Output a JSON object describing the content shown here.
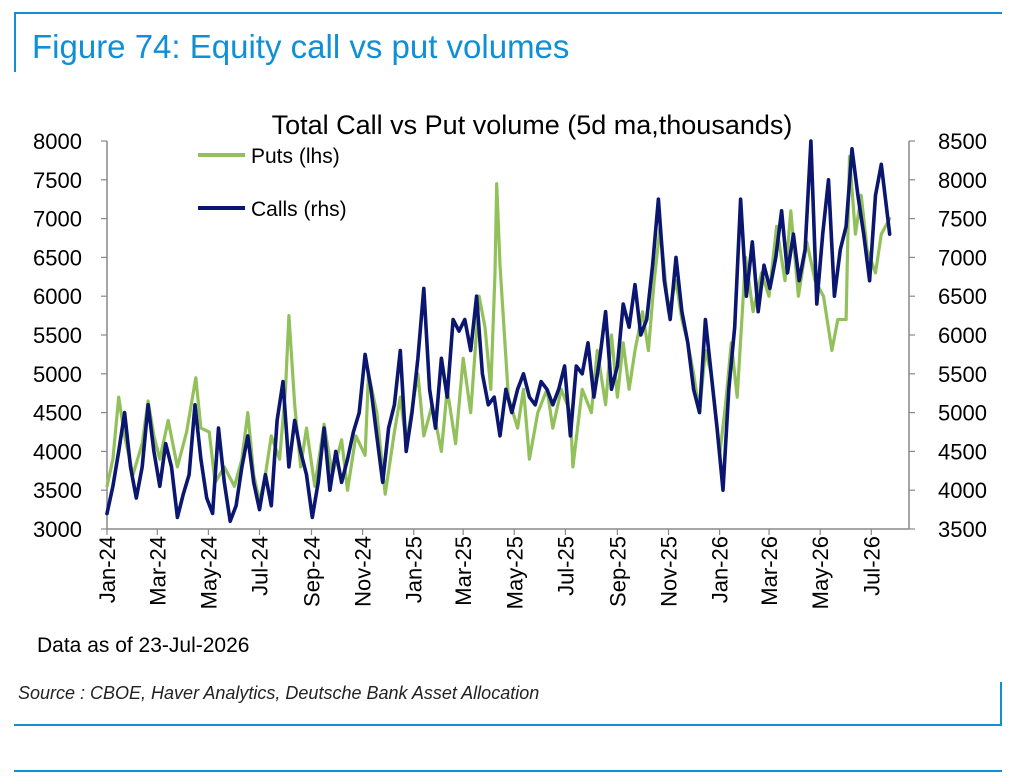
{
  "figure_title": "Figure 74: Equity call vs put volumes",
  "data_note": "Data as of 23-Jul-2026",
  "source": "Source : CBOE, Haver Analytics, Deutsche Bank Asset Allocation",
  "colors": {
    "brand": "#0e8fd6",
    "puts": "#92c05a",
    "calls": "#0a1670"
  },
  "chart_data": {
    "type": "line",
    "title": "Total Call vs Put volume (5d ma,thousands)",
    "legend": "top-left",
    "grid": false,
    "x_ticks": [
      "Jan-24",
      "Mar-24",
      "May-24",
      "Jul-24",
      "Sep-24",
      "Nov-24",
      "Jan-25",
      "Mar-25",
      "May-25",
      "Jul-25",
      "Sep-25",
      "Nov-25",
      "Jan-26",
      "Mar-26",
      "May-26",
      "Jul-26"
    ],
    "xlim": [
      "2024-01-01",
      "2026-08-15"
    ],
    "y_left": {
      "label": "",
      "ticks": [
        "3000",
        "3500",
        "4000",
        "4500",
        "5000",
        "5500",
        "6000",
        "6500",
        "7000",
        "7500",
        "8000"
      ],
      "ylim": [
        3000,
        8000
      ]
    },
    "y_right": {
      "label": "",
      "ticks": [
        "3500",
        "4000",
        "4500",
        "5000",
        "5500",
        "6000",
        "6500",
        "7000",
        "7500",
        "8000",
        "8500"
      ],
      "ylim": [
        3500,
        8500
      ]
    },
    "series": [
      {
        "name": "Puts (lhs)",
        "axis": "left",
        "color": "#92c05a",
        "points": [
          [
            "2024-01-01",
            3550
          ],
          [
            "2024-01-08",
            3900
          ],
          [
            "2024-01-15",
            4700
          ],
          [
            "2024-01-22",
            4200
          ],
          [
            "2024-02-01",
            3700
          ],
          [
            "2024-02-12",
            4100
          ],
          [
            "2024-02-19",
            4650
          ],
          [
            "2024-02-26",
            4200
          ],
          [
            "2024-03-04",
            3900
          ],
          [
            "2024-03-14",
            4400
          ],
          [
            "2024-03-25",
            3800
          ],
          [
            "2024-04-05",
            4250
          ],
          [
            "2024-04-16",
            4950
          ],
          [
            "2024-04-22",
            4300
          ],
          [
            "2024-05-02",
            4250
          ],
          [
            "2024-05-09",
            3600
          ],
          [
            "2024-05-20",
            3800
          ],
          [
            "2024-06-01",
            3550
          ],
          [
            "2024-06-10",
            3900
          ],
          [
            "2024-06-17",
            4500
          ],
          [
            "2024-06-24",
            3700
          ],
          [
            "2024-07-01",
            3350
          ],
          [
            "2024-07-08",
            3700
          ],
          [
            "2024-07-15",
            4200
          ],
          [
            "2024-07-25",
            3900
          ],
          [
            "2024-08-01",
            4800
          ],
          [
            "2024-08-05",
            5750
          ],
          [
            "2024-08-12",
            4600
          ],
          [
            "2024-08-19",
            3800
          ],
          [
            "2024-08-26",
            4300
          ],
          [
            "2024-09-05",
            3550
          ],
          [
            "2024-09-16",
            4350
          ],
          [
            "2024-09-26",
            3700
          ],
          [
            "2024-10-07",
            4150
          ],
          [
            "2024-10-14",
            3500
          ],
          [
            "2024-10-24",
            4200
          ],
          [
            "2024-11-04",
            3950
          ],
          [
            "2024-11-08",
            5000
          ],
          [
            "2024-11-18",
            4500
          ],
          [
            "2024-11-28",
            3450
          ],
          [
            "2024-12-09",
            4250
          ],
          [
            "2024-12-16",
            4700
          ],
          [
            "2024-12-23",
            4100
          ],
          [
            "2025-01-06",
            5000
          ],
          [
            "2025-01-13",
            4200
          ],
          [
            "2025-01-23",
            4600
          ],
          [
            "2025-02-03",
            4000
          ],
          [
            "2025-02-10",
            4800
          ],
          [
            "2025-02-20",
            4100
          ],
          [
            "2025-03-01",
            5200
          ],
          [
            "2025-03-10",
            4500
          ],
          [
            "2025-03-20",
            6000
          ],
          [
            "2025-03-27",
            5600
          ],
          [
            "2025-04-03",
            4800
          ],
          [
            "2025-04-08",
            6300
          ],
          [
            "2025-04-10",
            7450
          ],
          [
            "2025-04-14",
            6400
          ],
          [
            "2025-04-24",
            4700
          ],
          [
            "2025-05-05",
            4300
          ],
          [
            "2025-05-12",
            4800
          ],
          [
            "2025-05-19",
            3900
          ],
          [
            "2025-05-29",
            4500
          ],
          [
            "2025-06-09",
            4800
          ],
          [
            "2025-06-16",
            4300
          ],
          [
            "2025-06-26",
            4800
          ],
          [
            "2025-07-07",
            4500
          ],
          [
            "2025-07-10",
            3800
          ],
          [
            "2025-07-21",
            4800
          ],
          [
            "2025-08-01",
            4500
          ],
          [
            "2025-08-08",
            5300
          ],
          [
            "2025-08-18",
            4600
          ],
          [
            "2025-08-25",
            5500
          ],
          [
            "2025-09-01",
            4700
          ],
          [
            "2025-09-08",
            5400
          ],
          [
            "2025-09-15",
            4800
          ],
          [
            "2025-09-22",
            5300
          ],
          [
            "2025-10-01",
            5800
          ],
          [
            "2025-10-08",
            5300
          ],
          [
            "2025-10-15",
            6200
          ],
          [
            "2025-10-22",
            6900
          ],
          [
            "2025-11-01",
            5800
          ],
          [
            "2025-11-10",
            6200
          ],
          [
            "2025-11-17",
            5700
          ],
          [
            "2025-11-24",
            5400
          ],
          [
            "2025-12-01",
            5000
          ],
          [
            "2025-12-08",
            4500
          ],
          [
            "2025-12-15",
            5300
          ],
          [
            "2025-12-22",
            5000
          ],
          [
            "2026-01-01",
            3950
          ],
          [
            "2026-01-08",
            4600
          ],
          [
            "2026-01-15",
            5400
          ],
          [
            "2026-01-22",
            4700
          ],
          [
            "2026-02-01",
            6500
          ],
          [
            "2026-02-10",
            5800
          ],
          [
            "2026-02-20",
            6300
          ],
          [
            "2026-03-01",
            6000
          ],
          [
            "2026-03-10",
            6900
          ],
          [
            "2026-03-20",
            6200
          ],
          [
            "2026-03-27",
            7100
          ],
          [
            "2026-04-05",
            6000
          ],
          [
            "2026-04-15",
            6700
          ],
          [
            "2026-04-25",
            6200
          ],
          [
            "2026-05-05",
            6000
          ],
          [
            "2026-05-15",
            5300
          ],
          [
            "2026-05-22",
            5700
          ],
          [
            "2026-06-01",
            5700
          ],
          [
            "2026-06-05",
            7800
          ],
          [
            "2026-06-12",
            6800
          ],
          [
            "2026-06-19",
            7300
          ],
          [
            "2026-06-26",
            6600
          ],
          [
            "2026-07-06",
            6300
          ],
          [
            "2026-07-13",
            6800
          ],
          [
            "2026-07-23",
            7000
          ]
        ]
      },
      {
        "name": "Calls (rhs)",
        "axis": "right",
        "color": "#0a1670",
        "points": [
          [
            "2024-01-01",
            3700
          ],
          [
            "2024-01-08",
            4050
          ],
          [
            "2024-01-15",
            4500
          ],
          [
            "2024-01-22",
            5000
          ],
          [
            "2024-01-29",
            4300
          ],
          [
            "2024-02-05",
            3900
          ],
          [
            "2024-02-12",
            4300
          ],
          [
            "2024-02-19",
            5100
          ],
          [
            "2024-02-26",
            4500
          ],
          [
            "2024-03-04",
            4050
          ],
          [
            "2024-03-11",
            4600
          ],
          [
            "2024-03-18",
            4300
          ],
          [
            "2024-03-25",
            3650
          ],
          [
            "2024-04-01",
            3950
          ],
          [
            "2024-04-08",
            4200
          ],
          [
            "2024-04-15",
            5100
          ],
          [
            "2024-04-22",
            4400
          ],
          [
            "2024-04-29",
            3900
          ],
          [
            "2024-05-06",
            3700
          ],
          [
            "2024-05-13",
            4800
          ],
          [
            "2024-05-20",
            4100
          ],
          [
            "2024-05-27",
            3600
          ],
          [
            "2024-06-03",
            3800
          ],
          [
            "2024-06-10",
            4300
          ],
          [
            "2024-06-17",
            4700
          ],
          [
            "2024-06-24",
            4100
          ],
          [
            "2024-07-01",
            3750
          ],
          [
            "2024-07-08",
            4200
          ],
          [
            "2024-07-15",
            3800
          ],
          [
            "2024-07-22",
            4900
          ],
          [
            "2024-07-29",
            5400
          ],
          [
            "2024-08-05",
            4300
          ],
          [
            "2024-08-12",
            4900
          ],
          [
            "2024-08-19",
            4500
          ],
          [
            "2024-08-26",
            4200
          ],
          [
            "2024-09-02",
            3650
          ],
          [
            "2024-09-09",
            4100
          ],
          [
            "2024-09-16",
            4800
          ],
          [
            "2024-09-23",
            4000
          ],
          [
            "2024-09-30",
            4500
          ],
          [
            "2024-10-07",
            4100
          ],
          [
            "2024-10-14",
            4400
          ],
          [
            "2024-10-21",
            4750
          ],
          [
            "2024-10-28",
            5000
          ],
          [
            "2024-11-04",
            5750
          ],
          [
            "2024-11-11",
            5300
          ],
          [
            "2024-11-18",
            4700
          ],
          [
            "2024-11-25",
            4100
          ],
          [
            "2024-12-02",
            4800
          ],
          [
            "2024-12-09",
            5100
          ],
          [
            "2024-12-16",
            5800
          ],
          [
            "2024-12-23",
            4500
          ],
          [
            "2024-12-30",
            5000
          ],
          [
            "2025-01-06",
            5700
          ],
          [
            "2025-01-13",
            6600
          ],
          [
            "2025-01-20",
            5300
          ],
          [
            "2025-01-27",
            4800
          ],
          [
            "2025-02-03",
            5700
          ],
          [
            "2025-02-10",
            5200
          ],
          [
            "2025-02-17",
            6200
          ],
          [
            "2025-02-24",
            6050
          ],
          [
            "2025-03-03",
            6200
          ],
          [
            "2025-03-10",
            5800
          ],
          [
            "2025-03-17",
            6500
          ],
          [
            "2025-03-24",
            5500
          ],
          [
            "2025-03-31",
            5100
          ],
          [
            "2025-04-07",
            5200
          ],
          [
            "2025-04-14",
            4700
          ],
          [
            "2025-04-21",
            5300
          ],
          [
            "2025-04-28",
            5000
          ],
          [
            "2025-05-05",
            5300
          ],
          [
            "2025-05-12",
            5500
          ],
          [
            "2025-05-19",
            5200
          ],
          [
            "2025-05-26",
            5100
          ],
          [
            "2025-06-02",
            5400
          ],
          [
            "2025-06-09",
            5300
          ],
          [
            "2025-06-16",
            5100
          ],
          [
            "2025-06-23",
            5300
          ],
          [
            "2025-06-30",
            5600
          ],
          [
            "2025-07-07",
            4700
          ],
          [
            "2025-07-14",
            5600
          ],
          [
            "2025-07-21",
            5500
          ],
          [
            "2025-07-28",
            5900
          ],
          [
            "2025-08-04",
            5200
          ],
          [
            "2025-08-11",
            5700
          ],
          [
            "2025-08-18",
            6300
          ],
          [
            "2025-08-25",
            5300
          ],
          [
            "2025-09-01",
            5600
          ],
          [
            "2025-09-08",
            6400
          ],
          [
            "2025-09-15",
            6100
          ],
          [
            "2025-09-22",
            6650
          ],
          [
            "2025-09-29",
            6000
          ],
          [
            "2025-10-06",
            6200
          ],
          [
            "2025-10-13",
            6900
          ],
          [
            "2025-10-20",
            7750
          ],
          [
            "2025-10-27",
            6700
          ],
          [
            "2025-11-03",
            6200
          ],
          [
            "2025-11-10",
            7000
          ],
          [
            "2025-11-17",
            6300
          ],
          [
            "2025-11-24",
            5900
          ],
          [
            "2025-12-01",
            5300
          ],
          [
            "2025-12-08",
            5000
          ],
          [
            "2025-12-15",
            6200
          ],
          [
            "2025-12-22",
            5500
          ],
          [
            "2025-12-29",
            4800
          ],
          [
            "2026-01-05",
            4000
          ],
          [
            "2026-01-12",
            5300
          ],
          [
            "2026-01-19",
            6100
          ],
          [
            "2026-01-26",
            7750
          ],
          [
            "2026-02-02",
            6500
          ],
          [
            "2026-02-09",
            7200
          ],
          [
            "2026-02-16",
            6300
          ],
          [
            "2026-02-23",
            6900
          ],
          [
            "2026-03-02",
            6600
          ],
          [
            "2026-03-09",
            7000
          ],
          [
            "2026-03-16",
            7600
          ],
          [
            "2026-03-23",
            6800
          ],
          [
            "2026-03-30",
            7300
          ],
          [
            "2026-04-06",
            6700
          ],
          [
            "2026-04-13",
            7100
          ],
          [
            "2026-04-20",
            8500
          ],
          [
            "2026-04-27",
            6400
          ],
          [
            "2026-05-04",
            7300
          ],
          [
            "2026-05-11",
            8000
          ],
          [
            "2026-05-18",
            6500
          ],
          [
            "2026-05-25",
            7100
          ],
          [
            "2026-06-01",
            7400
          ],
          [
            "2026-06-08",
            8400
          ],
          [
            "2026-06-15",
            7800
          ],
          [
            "2026-06-22",
            7300
          ],
          [
            "2026-06-29",
            6700
          ],
          [
            "2026-07-06",
            7800
          ],
          [
            "2026-07-13",
            8200
          ],
          [
            "2026-07-23",
            7300
          ]
        ]
      }
    ]
  }
}
